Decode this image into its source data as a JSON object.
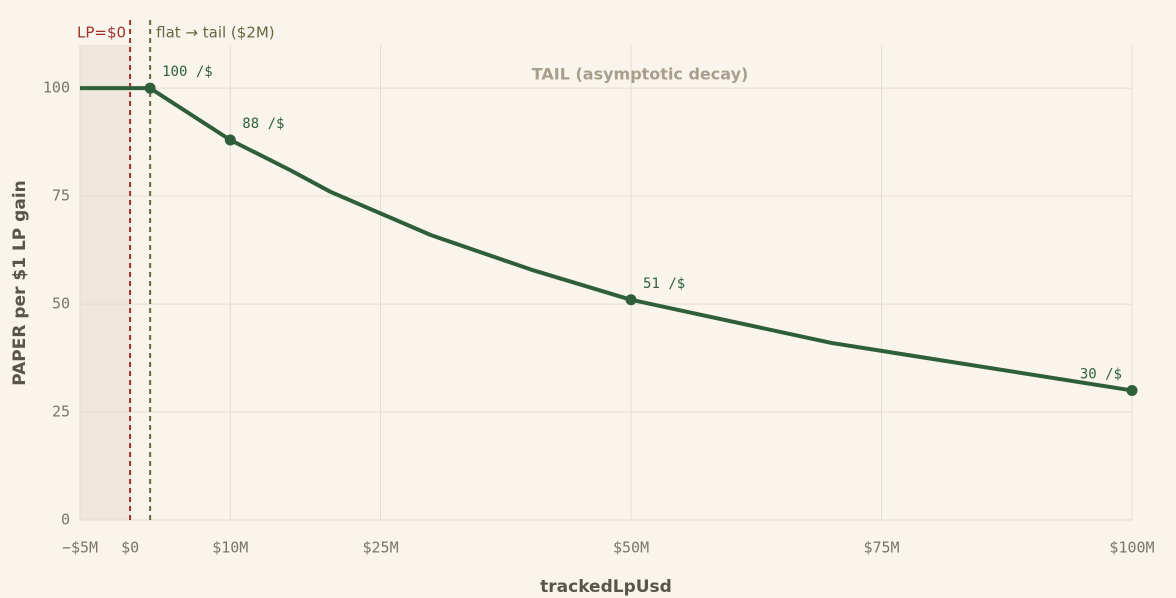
{
  "chart_data": {
    "type": "line",
    "xlabel": "trackedLpUsd",
    "ylabel": "PAPER per $1 LP gain",
    "xlim": [
      -5,
      100
    ],
    "ylim": [
      0,
      110
    ],
    "xticks": [
      {
        "value": -5,
        "label": "−$5M"
      },
      {
        "value": 0,
        "label": "$0"
      },
      {
        "value": 10,
        "label": "$10M"
      },
      {
        "value": 25,
        "label": "$25M"
      },
      {
        "value": 50,
        "label": "$50M"
      },
      {
        "value": 75,
        "label": "$75M"
      },
      {
        "value": 100,
        "label": "$100M"
      }
    ],
    "yticks": [
      0,
      25,
      50,
      75,
      100
    ],
    "grid": true,
    "color": "#2f5f3a",
    "x": [
      -5,
      2,
      10,
      16,
      20,
      30,
      40,
      50,
      70,
      100
    ],
    "values": [
      100,
      100,
      88,
      81,
      76,
      66,
      58,
      51,
      41,
      30
    ],
    "markers": {
      "x": [
        2,
        10,
        50,
        100
      ],
      "values": [
        100,
        88,
        51,
        30
      ],
      "value_labels": [
        "100 /$",
        "88 /$",
        "51 /$",
        "30 /$"
      ]
    },
    "shade_xlim": [
      -5,
      0
    ],
    "vlines": [
      {
        "x": 0,
        "label": "LP=$0",
        "color": "#a0302a"
      },
      {
        "x": 2,
        "label": "flat → tail ($2M)",
        "color": "#6e6440"
      }
    ],
    "annotation": "TAIL (asymptotic decay)"
  }
}
